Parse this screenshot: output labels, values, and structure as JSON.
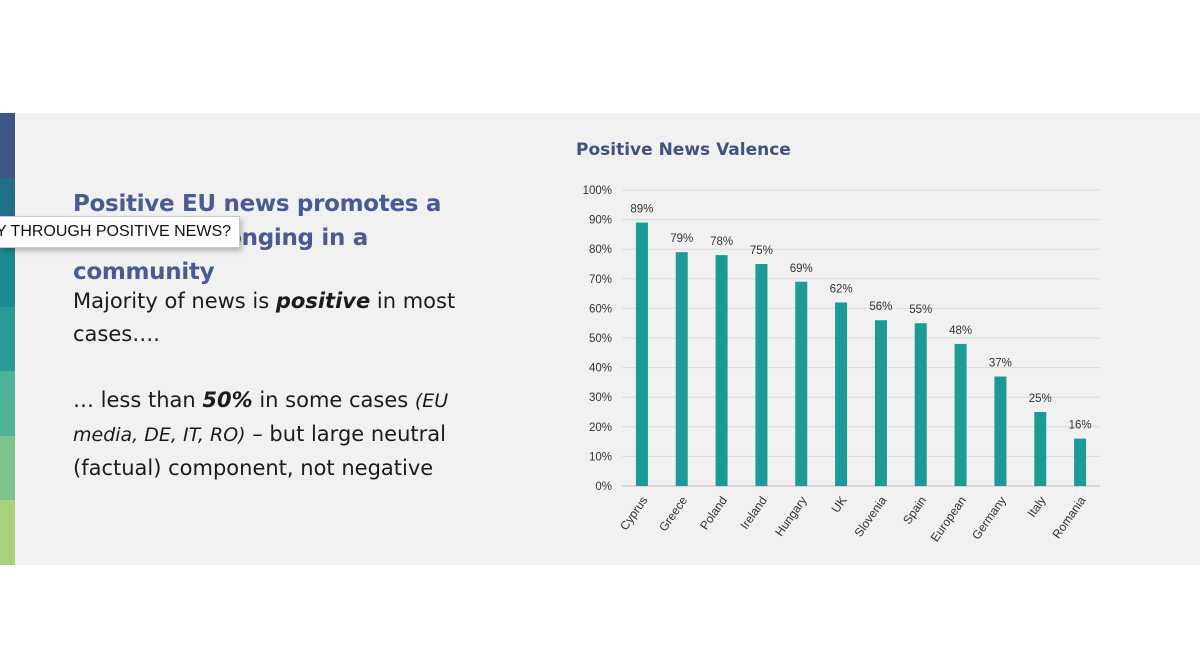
{
  "slide": {
    "headline": "Positive EU news promotes a sense of belonging in a community",
    "tooltip": "Y  THROUGH POSITIVE NEWS?",
    "body": {
      "line1_pre": "Majority of news is ",
      "line1_bold": "positive",
      "line1_post": " in most cases….",
      "line2_pre": "… less than ",
      "line2_bold": "50%",
      "line2_mid": " in some cases ",
      "line2_italic": "(EU media, DE, IT, RO)",
      "line2_post": " – but large  neutral (factual) component, not negative"
    },
    "accent_colors": [
      "#3d5587",
      "#1f6f88",
      "#1c8a93",
      "#2a9a98",
      "#4fb39a",
      "#7cc48c",
      "#a9d07a"
    ]
  },
  "chart_data": {
    "type": "bar",
    "title": "Positive News Valence",
    "categories": [
      "Cyprus",
      "Greece",
      "Poland",
      "Ireland",
      "Hungary",
      "UK",
      "Slovenia",
      "Spain",
      "European",
      "Germany",
      "Italy",
      "Romania"
    ],
    "values": [
      89,
      79,
      78,
      75,
      69,
      62,
      56,
      55,
      48,
      37,
      25,
      16
    ],
    "data_labels": [
      "89%",
      "79%",
      "78%",
      "75%",
      "69%",
      "62%",
      "56%",
      "55%",
      "48%",
      "37%",
      "25%",
      "16%"
    ],
    "ylim": [
      0,
      100
    ],
    "yticks": [
      "0%",
      "10%",
      "20%",
      "30%",
      "40%",
      "50%",
      "60%",
      "70%",
      "80%",
      "90%",
      "100%"
    ],
    "xlabel": "",
    "ylabel": "",
    "grid": true,
    "bar_color": "#1b9a96"
  }
}
